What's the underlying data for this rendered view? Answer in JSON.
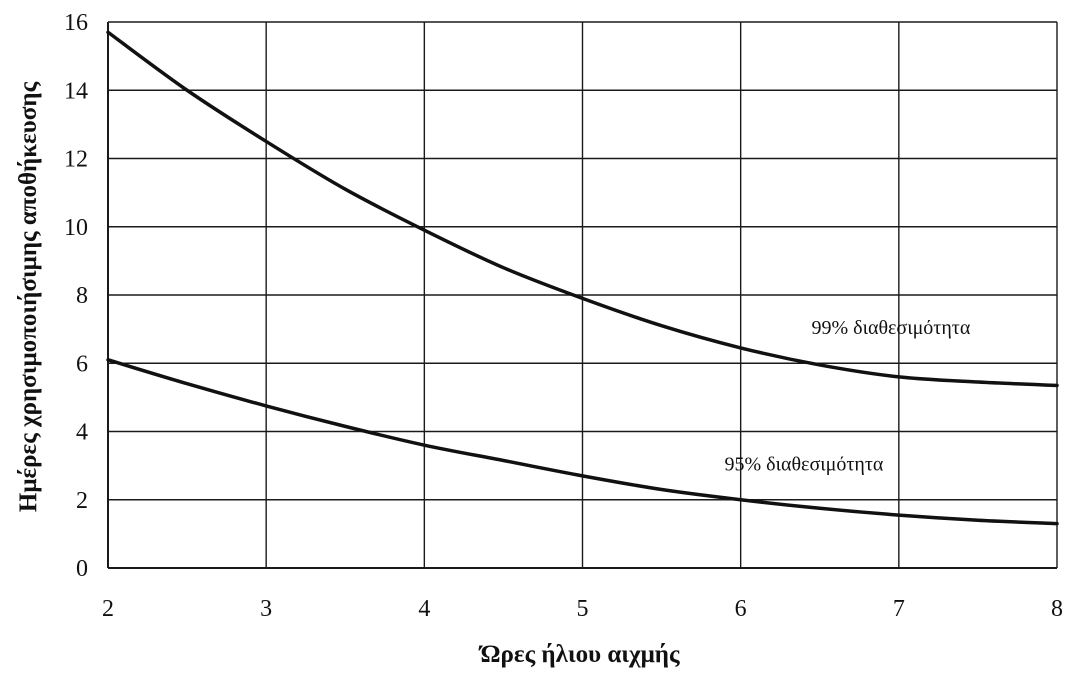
{
  "chart_data": {
    "type": "line",
    "title": "",
    "xlabel": "Ώρες ήλιου αιχμής",
    "ylabel": "Ημέρες χρησιμοποιήσιμης αποθήκευσης",
    "xlim": [
      2,
      8
    ],
    "ylim": [
      0,
      16
    ],
    "x_ticks": [
      "2",
      "3",
      "4",
      "5",
      "6",
      "7",
      "8"
    ],
    "y_ticks": [
      "0",
      "2",
      "4",
      "6",
      "8",
      "10",
      "12",
      "14",
      "16"
    ],
    "grid": true,
    "series": [
      {
        "name": "99% διαθεσιμότητα",
        "x": [
          2,
          2.5,
          3,
          3.5,
          4,
          4.5,
          5,
          5.5,
          6,
          6.5,
          7,
          7.5,
          8
        ],
        "y": [
          15.7,
          14.0,
          12.5,
          11.1,
          9.9,
          8.8,
          7.9,
          7.1,
          6.45,
          5.95,
          5.6,
          5.45,
          5.35
        ]
      },
      {
        "name": "95% διαθεσιμότητα",
        "x": [
          2,
          2.5,
          3,
          3.5,
          4,
          4.5,
          5,
          5.5,
          6,
          6.5,
          7,
          7.5,
          8
        ],
        "y": [
          6.1,
          5.4,
          4.75,
          4.15,
          3.6,
          3.15,
          2.7,
          2.3,
          2.0,
          1.75,
          1.55,
          1.4,
          1.3
        ]
      }
    ],
    "series_color": "#111111",
    "grid_color": "#1a1a1a"
  }
}
